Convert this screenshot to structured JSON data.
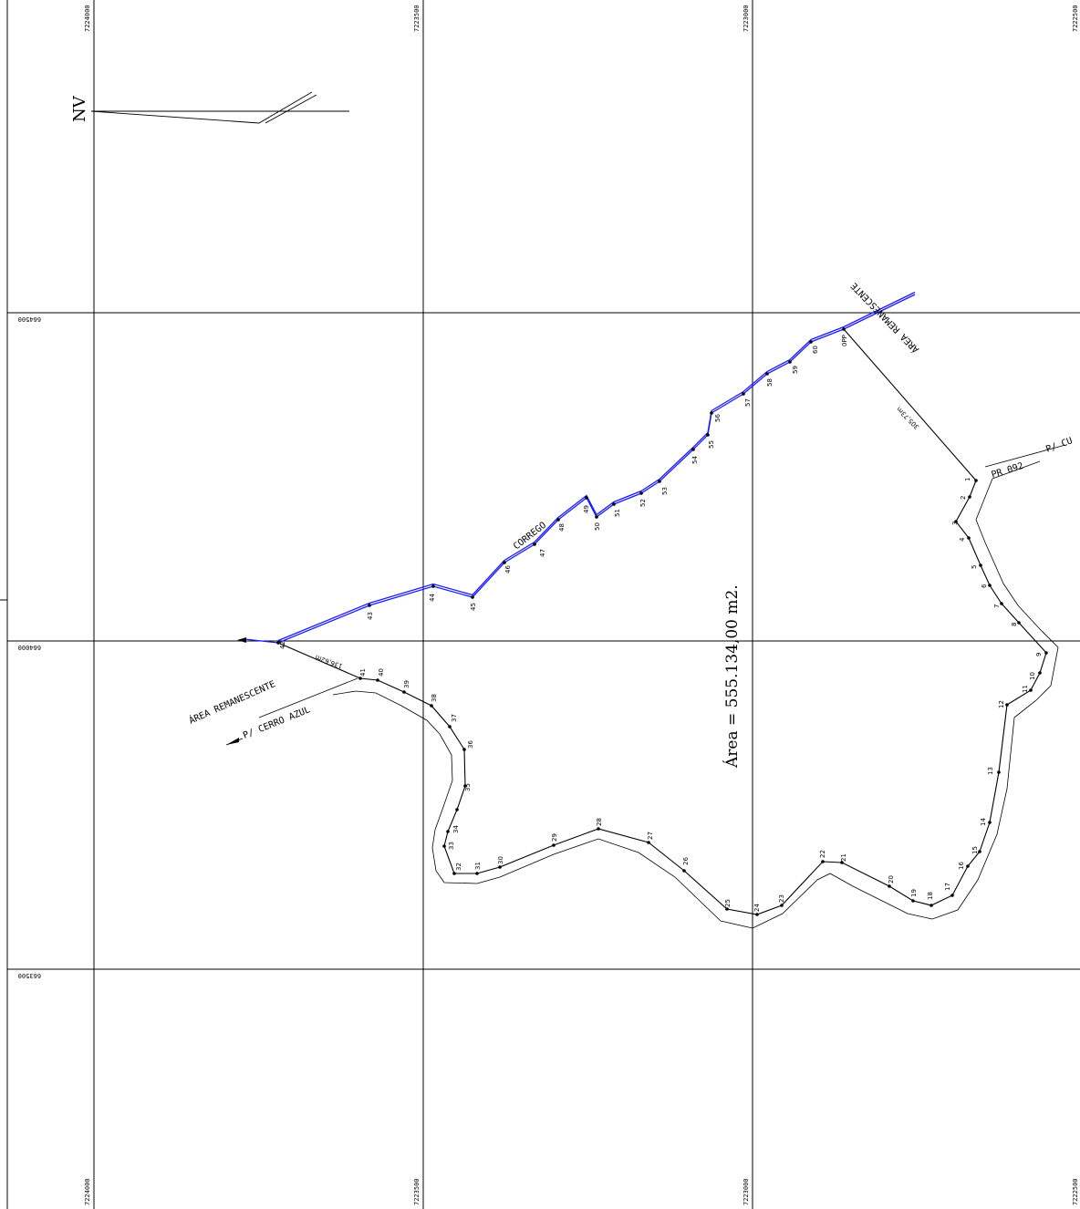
{
  "grid": {
    "x_labels": [
      "7224000",
      "7223500",
      "7223000",
      "7222500"
    ],
    "y_labels": [
      "664500",
      "664000",
      "663500"
    ]
  },
  "north": {
    "label": "NV"
  },
  "area": {
    "text": "Área  =  555.134,00  m2."
  },
  "stream": {
    "label": "CORREGO"
  },
  "remanescente": {
    "left": "ÁREA REMANESCENTE",
    "right": "ÁREA REMANESCENTE"
  },
  "roads": {
    "cerro_azul": "P/  CERRO AZUL",
    "pr092": "PR 092",
    "p_cu": "P/  CU"
  },
  "distances": {
    "d1": "136,62m",
    "d2": "305,73m"
  },
  "points": {
    "p0": "0PP",
    "p1": "1",
    "p2": "2",
    "p3": "3",
    "p4": "4",
    "p5": "5",
    "p6": "6",
    "p7": "7",
    "p8": "8",
    "p9": "9",
    "p10": "10",
    "p11": "11",
    "p12": "12",
    "p13": "13",
    "p14": "14",
    "p15": "15",
    "p16": "16",
    "p17": "17",
    "p18": "18",
    "p19": "19",
    "p20": "20",
    "p21": "21",
    "p22": "22",
    "p23": "23",
    "p24": "24",
    "p25": "25",
    "p26": "26",
    "p27": "27",
    "p28": "28",
    "p29": "29",
    "p30": "30",
    "p31": "31",
    "p32": "32",
    "p33": "33",
    "p34": "34",
    "p35": "35",
    "p36": "36",
    "p37": "37",
    "p38": "38",
    "p39": "39",
    "p40": "40",
    "p41": "41",
    "p42": "42",
    "p43": "43",
    "p44": "44",
    "p45": "45",
    "p46": "46",
    "p47": "47",
    "p48": "48",
    "p49": "49",
    "p50": "50",
    "p51": "51",
    "p52": "52",
    "p53": "53",
    "p54": "54",
    "p55": "55",
    "p56": "56",
    "p57": "57",
    "p58": "58",
    "p59": "59",
    "p60": "60"
  }
}
